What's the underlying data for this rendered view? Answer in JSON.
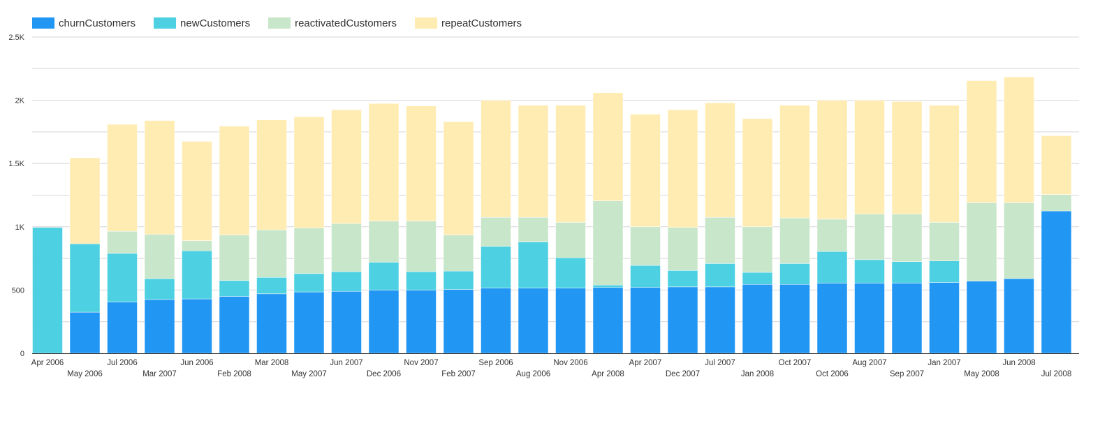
{
  "chart_data": {
    "type": "bar",
    "stacked": true,
    "title": "",
    "xlabel": "",
    "ylabel": "",
    "ylim": [
      0,
      2500
    ],
    "yticks": [
      0,
      250,
      500,
      750,
      1000,
      1250,
      1500,
      1750,
      2000,
      2250,
      2500
    ],
    "ytick_labels": {
      "0": "0",
      "500": "500",
      "1000": "1K",
      "1500": "1.5K",
      "2000": "2K",
      "2500": "2.5K"
    },
    "grid": true,
    "legend_position": "top-left",
    "categories": [
      "Apr 2006",
      "May 2006",
      "Jul 2006",
      "Mar 2007",
      "Jun 2006",
      "Feb 2008",
      "Mar 2008",
      "May 2007",
      "Jun 2007",
      "Dec 2006",
      "Nov 2007",
      "Feb 2007",
      "Sep 2006",
      "Aug 2006",
      "Nov 2006",
      "Apr 2008",
      "Apr 2007",
      "Dec 2007",
      "Jul 2007",
      "Jan 2008",
      "Oct 2007",
      "Oct 2006",
      "Aug 2007",
      "Sep 2007",
      "Jan 2007",
      "May 2008",
      "Jun 2008",
      "Jul 2008"
    ],
    "series": [
      {
        "name": "churnCustomers",
        "color": "#2196F3",
        "values": [
          0,
          325,
          405,
          425,
          430,
          450,
          470,
          485,
          490,
          500,
          500,
          505,
          515,
          515,
          515,
          520,
          520,
          525,
          525,
          545,
          545,
          555,
          555,
          555,
          560,
          570,
          590,
          1125
        ]
      },
      {
        "name": "newCustomers",
        "color": "#4DD0E1",
        "values": [
          995,
          540,
          385,
          165,
          380,
          125,
          130,
          145,
          155,
          220,
          145,
          145,
          330,
          365,
          240,
          20,
          175,
          130,
          185,
          95,
          165,
          250,
          185,
          170,
          170,
          0,
          0,
          0
        ]
      },
      {
        "name": "reactivatedCustomers",
        "color": "#C8E6C9",
        "values": [
          0,
          0,
          175,
          350,
          80,
          360,
          375,
          360,
          380,
          325,
          400,
          285,
          230,
          195,
          280,
          665,
          305,
          340,
          365,
          360,
          360,
          255,
          360,
          375,
          305,
          620,
          600,
          130
        ]
      },
      {
        "name": "repeatCustomers",
        "color": "#FFECB3",
        "values": [
          0,
          680,
          845,
          900,
          785,
          860,
          870,
          880,
          900,
          930,
          910,
          895,
          925,
          885,
          925,
          855,
          890,
          930,
          905,
          855,
          890,
          940,
          900,
          890,
          925,
          965,
          995,
          465
        ]
      }
    ]
  }
}
